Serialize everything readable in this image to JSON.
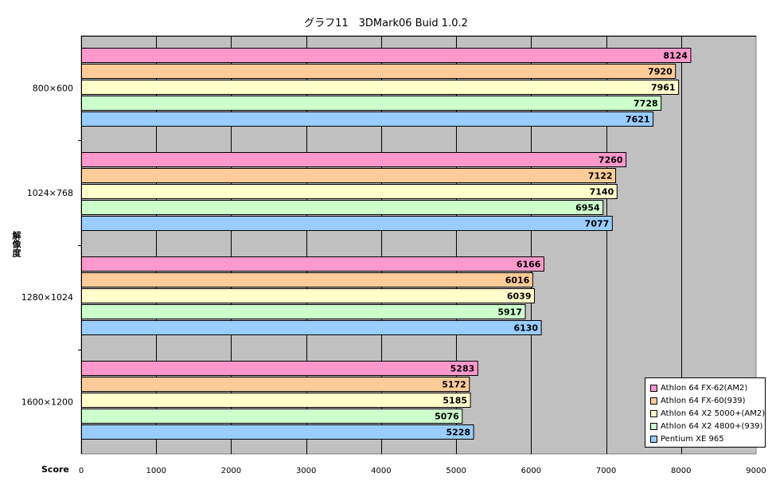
{
  "chart_data": {
    "type": "bar",
    "orientation": "horizontal",
    "title": "グラフ11　3DMark06  Buid 1.0.2",
    "xlabel": "Score",
    "ylabel": "解像度",
    "xlim": [
      0,
      9000
    ],
    "x_ticks": [
      "0",
      "1000",
      "2000",
      "3000",
      "4000",
      "5000",
      "6000",
      "7000",
      "8000",
      "9000"
    ],
    "categories": [
      "800×600",
      "1024×768",
      "1280×1024",
      "1600×1200"
    ],
    "grid": true,
    "legend_position": "bottom-right",
    "series": [
      {
        "name": "Athlon 64 FX-62(AM2)",
        "color": "#ff99cc",
        "values": [
          8124,
          7260,
          6166,
          5283
        ]
      },
      {
        "name": "Athlon 64 FX-60(939)",
        "color": "#ffcc99",
        "values": [
          7920,
          7122,
          6016,
          5172
        ]
      },
      {
        "name": "Athlon 64 X2 5000+(AM2)",
        "color": "#ffffcc",
        "values": [
          7961,
          7140,
          6039,
          5185
        ]
      },
      {
        "name": "Athlon 64 X2 4800+(939)",
        "color": "#ccffcc",
        "values": [
          7728,
          6954,
          5917,
          5076
        ]
      },
      {
        "name": "Pentium XE 965",
        "color": "#99ccff",
        "values": [
          7621,
          7077,
          6130,
          5228
        ]
      }
    ],
    "colors": {
      "plot_background": "#c0c0c0",
      "gridline": "#000000"
    }
  }
}
